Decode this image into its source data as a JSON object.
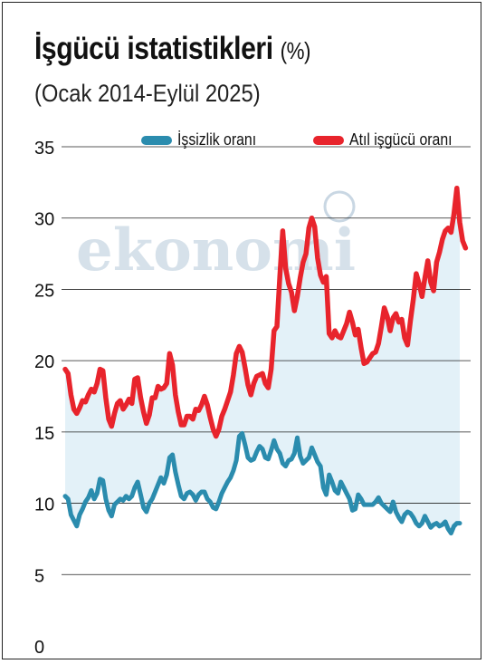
{
  "title": "İşgücü istatistikleri",
  "title_unit": "(%)",
  "subtitle": "(Ocak 2014-Eylül 2025)",
  "watermark": "ekonomi",
  "chart_data": {
    "type": "line",
    "title": "İşgücü istatistikleri (%)",
    "subtitle": "(Ocak 2014-Eylül 2025)",
    "x_start": "2014-01",
    "x_end": "2025-09",
    "x_tick_labels": [],
    "ylim": [
      0,
      35
    ],
    "yticks": [
      0,
      5,
      10,
      15,
      20,
      25,
      30,
      35
    ],
    "grid": "horizontal",
    "legend_position": "top",
    "series": [
      {
        "name": "İşsizlik oranı",
        "color": "#2b8cae",
        "values": [
          [
            10.5,
            10.3,
            9.2,
            8.8,
            8.4,
            9.2,
            9.6,
            10.1,
            10.4,
            10.9,
            10.3,
            10.7,
            11.7,
            11.6,
            10.3,
            9.5,
            9.1,
            9.9,
            10.1,
            10.3,
            10.2,
            10.5,
            10.3,
            10.5,
            11.1,
            11.5,
            10.6,
            9.7,
            9.4,
            10.0,
            10.3,
            10.8,
            11.3,
            11.8,
            11.4,
            12.0,
            13.2,
            13.4,
            12.2,
            11.3,
            10.5,
            10.3,
            10.7,
            10.8,
            10.6,
            10.2,
            10.6,
            10.8,
            10.8,
            10.3,
            10.1,
            9.7,
            9.6,
            10.1,
            10.7,
            11.1,
            11.5,
            11.8,
            12.3,
            13.0,
            14.7,
            14.9,
            14.1,
            13.2,
            13.0,
            13.1,
            13.6,
            14.0,
            13.8,
            13.2,
            13.1,
            13.7,
            14.4,
            13.8,
            13.5,
            12.8,
            12.6,
            13.0,
            13.1,
            13.5,
            14.6,
            13.3,
            12.8,
            13.0,
            13.2,
            13.9,
            13.4,
            12.9,
            12.6,
            11.1,
            10.6,
            12.0,
            11.5,
            10.9,
            10.7,
            11.5,
            11.1,
            10.7,
            10.3,
            9.5,
            9.6,
            10.6,
            10.3,
            9.9,
            9.9,
            9.9,
            9.9,
            10.1,
            10.4,
            10.0,
            9.8,
            9.6,
            9.4,
            10.1,
            9.4,
            9.0,
            8.7,
            9.2,
            9.4,
            9.3,
            9.0,
            8.6,
            8.4,
            8.6,
            9.1,
            8.7,
            8.3,
            8.5,
            8.6,
            8.4,
            8.5,
            8.7,
            8.2,
            7.9,
            8.4,
            8.6,
            8.6
          ]
        ]
      },
      {
        "name": "Atıl işgücü oranı",
        "color": "#e8242c",
        "values": [
          [
            19.4,
            19.1,
            17.6,
            16.6,
            16.3,
            16.7,
            17.2,
            17.1,
            17.6,
            18.0,
            17.8,
            18.4,
            19.4,
            19.3,
            17.4,
            15.9,
            15.4,
            16.3,
            17.0,
            17.2,
            16.6,
            16.9,
            17.3,
            17.0,
            18.7,
            18.8,
            17.4,
            16.4,
            15.6,
            16.2,
            17.4,
            17.4,
            18.2,
            18.0,
            18.1,
            18.4,
            20.5,
            19.7,
            17.6,
            16.4,
            15.5,
            15.5,
            16.1,
            16.1,
            15.9,
            16.6,
            16.5,
            16.9,
            17.5,
            16.9,
            16.0,
            15.2,
            14.7,
            15.2,
            16.1,
            16.6,
            17.2,
            17.8,
            19.0,
            20.5,
            21.0,
            20.6,
            19.5,
            18.3,
            17.6,
            18.4,
            18.9,
            19.0,
            19.1,
            18.4,
            18.1,
            19.4,
            22.1,
            22.4,
            25.9,
            29.1,
            26.5,
            25.4,
            24.8,
            23.5,
            24.5,
            25.8,
            26.9,
            27.5,
            29.3,
            30.0,
            29.4,
            27.2,
            26.0,
            25.5,
            25.9,
            21.9,
            21.6,
            22.1,
            21.7,
            21.6,
            22.1,
            22.6,
            23.4,
            22.7,
            21.8,
            22.2,
            20.9,
            19.8,
            19.9,
            20.2,
            20.5,
            20.6,
            21.2,
            22.4,
            23.7,
            23.1,
            22.1,
            23.0,
            23.3,
            22.7,
            22.9,
            21.6,
            21.1,
            22.8,
            24.3,
            26.1,
            25.4,
            24.5,
            25.8,
            27.0,
            25.5,
            24.9,
            26.9,
            27.6,
            28.5,
            29.1,
            29.3,
            29.0,
            30.3,
            32.1,
            29.7,
            28.4,
            27.9
          ]
        ]
      }
    ]
  }
}
